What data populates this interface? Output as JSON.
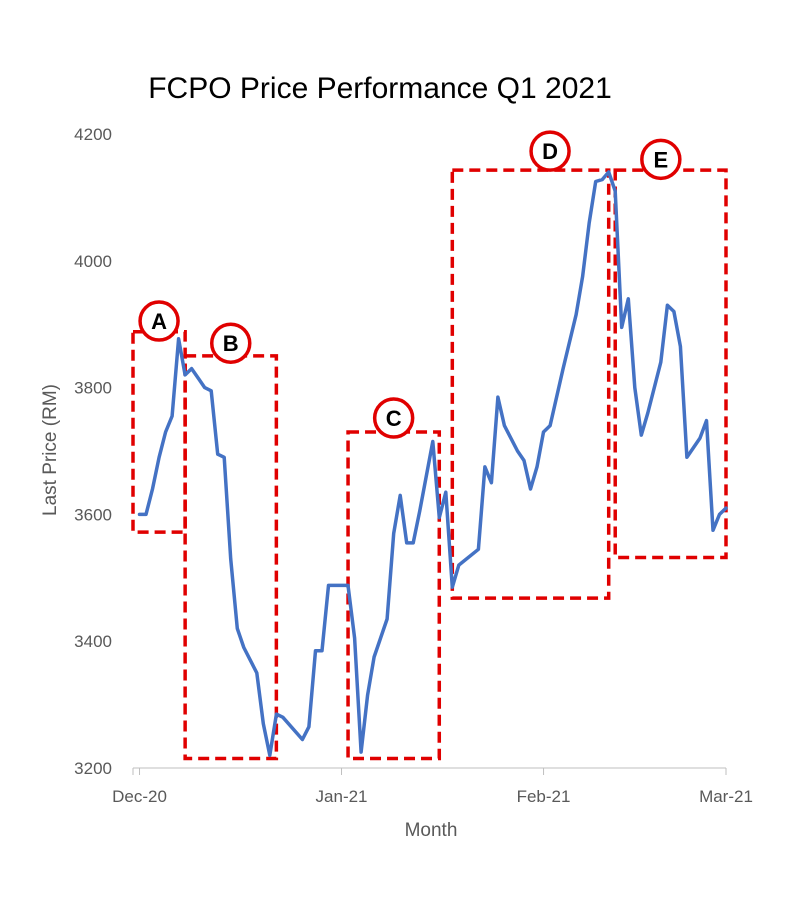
{
  "chart_data": {
    "type": "line",
    "title": "FCPO Price Performance Q1 2021",
    "xlabel": "Month",
    "ylabel": "Last Price (RM)",
    "ylim": [
      3200,
      4200
    ],
    "yticks": [
      "3200",
      "3400",
      "3600",
      "3800",
      "4000",
      "4200"
    ],
    "xlim": [
      "2020-11-30",
      "2021-03-01"
    ],
    "xticks": [
      {
        "date": "2020-12-01",
        "label": "Dec-20"
      },
      {
        "date": "2021-01-01",
        "label": "Jan-21"
      },
      {
        "date": "2021-02-01",
        "label": "Feb-21"
      },
      {
        "date": "2021-03-01",
        "label": "Mar-21"
      }
    ],
    "grid": false,
    "line_color": "#4472C4",
    "series": [
      {
        "points": [
          [
            "2020-12-01",
            3600
          ],
          [
            "2020-12-02",
            3600
          ],
          [
            "2020-12-03",
            3640
          ],
          [
            "2020-12-04",
            3690
          ],
          [
            "2020-12-05",
            3730
          ],
          [
            "2020-12-06",
            3755
          ],
          [
            "2020-12-07",
            3877
          ],
          [
            "2020-12-08",
            3820
          ],
          [
            "2020-12-09",
            3830
          ],
          [
            "2020-12-10",
            3815
          ],
          [
            "2020-12-11",
            3800
          ],
          [
            "2020-12-12",
            3795
          ],
          [
            "2020-12-13",
            3695
          ],
          [
            "2020-12-14",
            3690
          ],
          [
            "2020-12-15",
            3530
          ],
          [
            "2020-12-16",
            3420
          ],
          [
            "2020-12-17",
            3390
          ],
          [
            "2020-12-18",
            3370
          ],
          [
            "2020-12-19",
            3350
          ],
          [
            "2020-12-20",
            3270
          ],
          [
            "2020-12-21",
            3220
          ],
          [
            "2020-12-22",
            3285
          ],
          [
            "2020-12-23",
            3280
          ],
          [
            "2020-12-26",
            3245
          ],
          [
            "2020-12-27",
            3265
          ],
          [
            "2020-12-28",
            3385
          ],
          [
            "2020-12-29",
            3385
          ],
          [
            "2020-12-30",
            3488
          ],
          [
            "2020-12-31",
            3488
          ],
          [
            "2021-01-02",
            3488
          ],
          [
            "2021-01-03",
            3405
          ],
          [
            "2021-01-04",
            3225
          ],
          [
            "2021-01-05",
            3315
          ],
          [
            "2021-01-06",
            3375
          ],
          [
            "2021-01-08",
            3435
          ],
          [
            "2021-01-09",
            3570
          ],
          [
            "2021-01-10",
            3630
          ],
          [
            "2021-01-11",
            3555
          ],
          [
            "2021-01-12",
            3555
          ],
          [
            "2021-01-13",
            3605
          ],
          [
            "2021-01-15",
            3715
          ],
          [
            "2021-01-16",
            3595
          ],
          [
            "2021-01-17",
            3635
          ],
          [
            "2021-01-18",
            3485
          ],
          [
            "2021-01-19",
            3520
          ],
          [
            "2021-01-22",
            3545
          ],
          [
            "2021-01-23",
            3675
          ],
          [
            "2021-01-24",
            3650
          ],
          [
            "2021-01-25",
            3785
          ],
          [
            "2021-01-26",
            3740
          ],
          [
            "2021-01-28",
            3700
          ],
          [
            "2021-01-29",
            3685
          ],
          [
            "2021-01-30",
            3640
          ],
          [
            "2021-01-31",
            3675
          ],
          [
            "2021-02-01",
            3730
          ],
          [
            "2021-02-02",
            3740
          ],
          [
            "2021-02-04",
            3830
          ],
          [
            "2021-02-06",
            3915
          ],
          [
            "2021-02-07",
            3975
          ],
          [
            "2021-02-08",
            4060
          ],
          [
            "2021-02-09",
            4125
          ],
          [
            "2021-02-10",
            4128
          ],
          [
            "2021-02-11",
            4140
          ],
          [
            "2021-02-12",
            4110
          ],
          [
            "2021-02-13",
            3895
          ],
          [
            "2021-02-14",
            3940
          ],
          [
            "2021-02-15",
            3800
          ],
          [
            "2021-02-16",
            3725
          ],
          [
            "2021-02-17",
            3760
          ],
          [
            "2021-02-19",
            3840
          ],
          [
            "2021-02-20",
            3930
          ],
          [
            "2021-02-21",
            3920
          ],
          [
            "2021-02-22",
            3865
          ],
          [
            "2021-02-23",
            3690
          ],
          [
            "2021-02-25",
            3720
          ],
          [
            "2021-02-26",
            3748
          ],
          [
            "2021-02-27",
            3575
          ],
          [
            "2021-02-28",
            3600
          ],
          [
            "2021-03-01",
            3610
          ]
        ]
      }
    ],
    "annotations": [
      {
        "label": "A",
        "x0": "2020-11-30",
        "x1": "2020-12-08",
        "y0": 3572,
        "y1": 3888,
        "label_x": "2020-12-04",
        "label_y": 3905
      },
      {
        "label": "B",
        "x0": "2020-12-08",
        "x1": "2020-12-22",
        "y0": 3215,
        "y1": 3850,
        "label_x": "2020-12-15",
        "label_y": 3870
      },
      {
        "label": "C",
        "x0": "2021-01-02",
        "x1": "2021-01-16",
        "y0": 3215,
        "y1": 3730,
        "label_x": "2021-01-09",
        "label_y": 3752
      },
      {
        "label": "D",
        "x0": "2021-01-18",
        "x1": "2021-02-11",
        "y0": 3468,
        "y1": 4143,
        "label_x": "2021-02-02",
        "label_y": 4173
      },
      {
        "label": "E",
        "x0": "2021-02-12",
        "x1": "2021-03-01",
        "y0": 3532,
        "y1": 4143,
        "label_x": "2021-02-19",
        "label_y": 4160
      }
    ],
    "annotation_color": "#E00000"
  }
}
